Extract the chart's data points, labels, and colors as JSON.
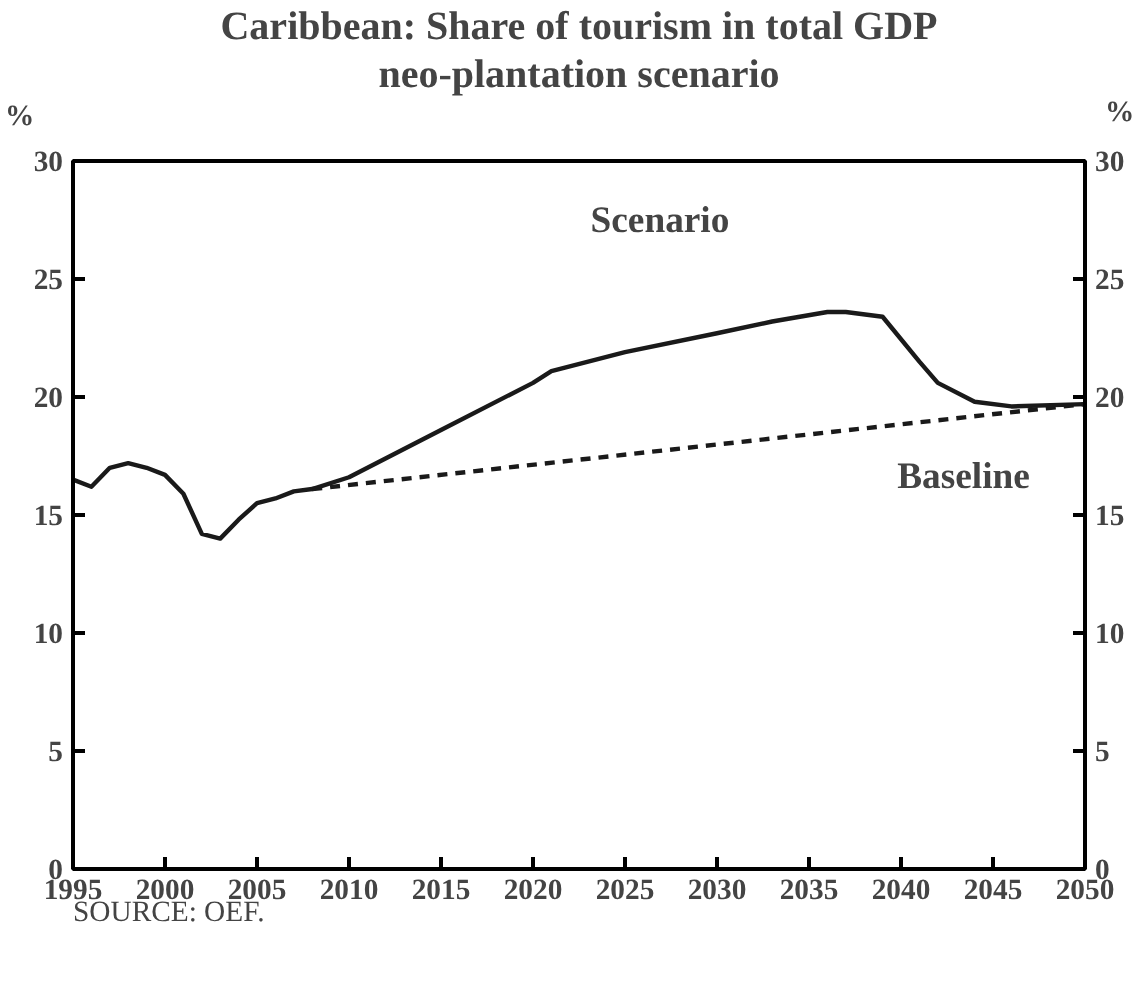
{
  "chart_data": {
    "type": "line",
    "title": "Caribbean: Share of tourism in total GDP",
    "subtitle": "neo-plantation scenario",
    "ylabel": "%",
    "y2label": "%",
    "xlim": [
      1995,
      2050
    ],
    "xticks": [
      1995,
      2000,
      2005,
      2010,
      2015,
      2020,
      2025,
      2030,
      2035,
      2040,
      2045,
      2050
    ],
    "ylim": [
      0,
      30
    ],
    "yticks": [
      0,
      5,
      10,
      15,
      20,
      25,
      30
    ],
    "y2lim": [
      0,
      30
    ],
    "y2ticks": [
      0,
      5,
      10,
      15,
      20,
      25,
      30
    ],
    "grid": false,
    "legend": false,
    "series": [
      {
        "name": "Scenario",
        "color": "#1a1a1a",
        "line_style": "solid",
        "x": [
          1995,
          1996,
          1997,
          1998,
          1999,
          2000,
          2001,
          2002,
          2003,
          2004,
          2005,
          2006,
          2007,
          2008,
          2010,
          2015,
          2020,
          2021,
          2025,
          2030,
          2033,
          2036,
          2037,
          2039,
          2041,
          2042,
          2044,
          2046,
          2050
        ],
        "values": [
          16.5,
          16.2,
          17.0,
          17.2,
          17.0,
          16.7,
          15.9,
          14.2,
          14.0,
          14.8,
          15.5,
          15.7,
          16.0,
          16.1,
          16.6,
          18.6,
          20.6,
          21.1,
          21.9,
          22.7,
          23.2,
          23.6,
          23.6,
          23.4,
          21.5,
          20.6,
          19.8,
          19.6,
          19.7
        ]
      },
      {
        "name": "Baseline",
        "color": "#1a1a1a",
        "line_style": "dashed",
        "x": [
          2008,
          2050
        ],
        "values": [
          16.1,
          19.7
        ]
      }
    ],
    "annotations": [
      "SOURCE: OEF."
    ]
  }
}
